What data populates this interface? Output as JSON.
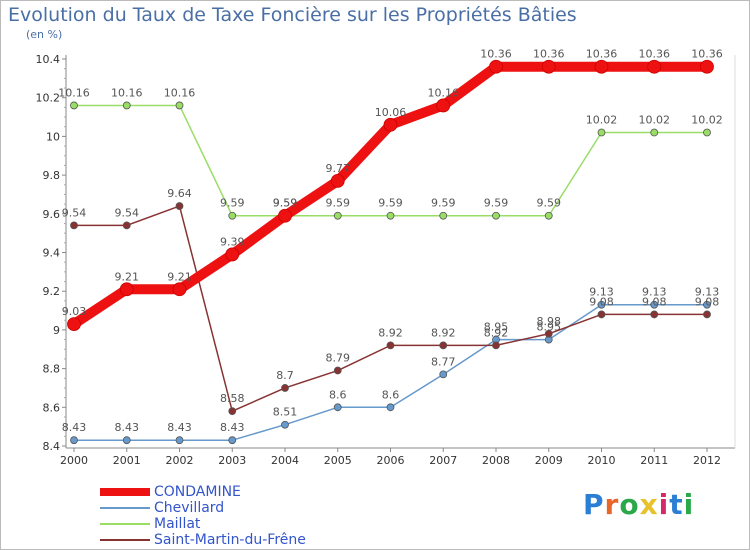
{
  "chart_data": {
    "type": "line",
    "title": "Evolution du Taux de Taxe Foncière sur les Propriétés Bâties",
    "ylabel": "(en %)",
    "xlabel": "",
    "categories": [
      "2000",
      "2001",
      "2002",
      "2003",
      "2004",
      "2005",
      "2006",
      "2007",
      "2008",
      "2009",
      "2010",
      "2011",
      "2012"
    ],
    "ylim": [
      8.4,
      10.4
    ],
    "yticks": [
      "8.4",
      "8.6",
      "8.8",
      "9",
      "9.2",
      "9.4",
      "9.6",
      "9.8",
      "10",
      "10.2",
      "10.4"
    ],
    "grid": false,
    "legend_position": "bottom-left",
    "series": [
      {
        "name": "CONDAMINE",
        "color": "#ee1111",
        "width": 10,
        "values": [
          9.03,
          9.21,
          9.21,
          9.39,
          9.59,
          9.77,
          10.06,
          10.16,
          10.36,
          10.36,
          10.36,
          10.36,
          10.36
        ],
        "labels": [
          "9.03",
          "9.21",
          "9.21",
          "9.39",
          "9.59",
          "9.77",
          "10.06",
          "10.16",
          "10.36",
          "10.36",
          "10.36",
          "10.36",
          "10.36"
        ]
      },
      {
        "name": "Chevillard",
        "color": "#6699cc",
        "width": 1.5,
        "values": [
          8.43,
          8.43,
          8.43,
          8.43,
          8.51,
          8.6,
          8.6,
          8.77,
          8.95,
          8.95,
          9.13,
          9.13,
          9.13
        ],
        "labels": [
          "8.43",
          "8.43",
          "8.43",
          "8.43",
          "8.51",
          "8.6",
          "8.6",
          "8.77",
          "8.95",
          "8.95",
          "9.13",
          "9.13",
          "9.13"
        ]
      },
      {
        "name": "Maillat",
        "color": "#99dd66",
        "width": 1.5,
        "values": [
          10.16,
          10.16,
          10.16,
          9.59,
          9.59,
          9.59,
          9.59,
          9.59,
          9.59,
          9.59,
          10.02,
          10.02,
          10.02
        ],
        "labels": [
          "10.16",
          "10.16",
          "10.16",
          "9.59",
          "9.59",
          "9.59",
          "9.59",
          "9.59",
          "9.59",
          "9.59",
          "10.02",
          "10.02",
          "10.02"
        ]
      },
      {
        "name": "Saint-Martin-du-Frêne",
        "color": "#883333",
        "width": 1.5,
        "values": [
          9.54,
          9.54,
          9.64,
          8.58,
          8.7,
          8.79,
          8.92,
          8.92,
          8.92,
          8.98,
          9.08,
          9.08,
          9.08
        ],
        "labels": [
          "9.54",
          "9.54",
          "9.64",
          "8.58",
          "8.7",
          "8.79",
          "8.92",
          "8.92",
          "8.92",
          "8.98",
          "9.08",
          "9.08",
          "9.08"
        ]
      }
    ]
  },
  "brand": {
    "letters": [
      "P",
      "r",
      "o",
      "x",
      "i",
      "t",
      "i"
    ],
    "colors": [
      "#2a7fd4",
      "#e8662a",
      "#2aa84a",
      "#e8c22a",
      "#d42a6a",
      "#2a7fd4",
      "#2aa84a"
    ]
  }
}
